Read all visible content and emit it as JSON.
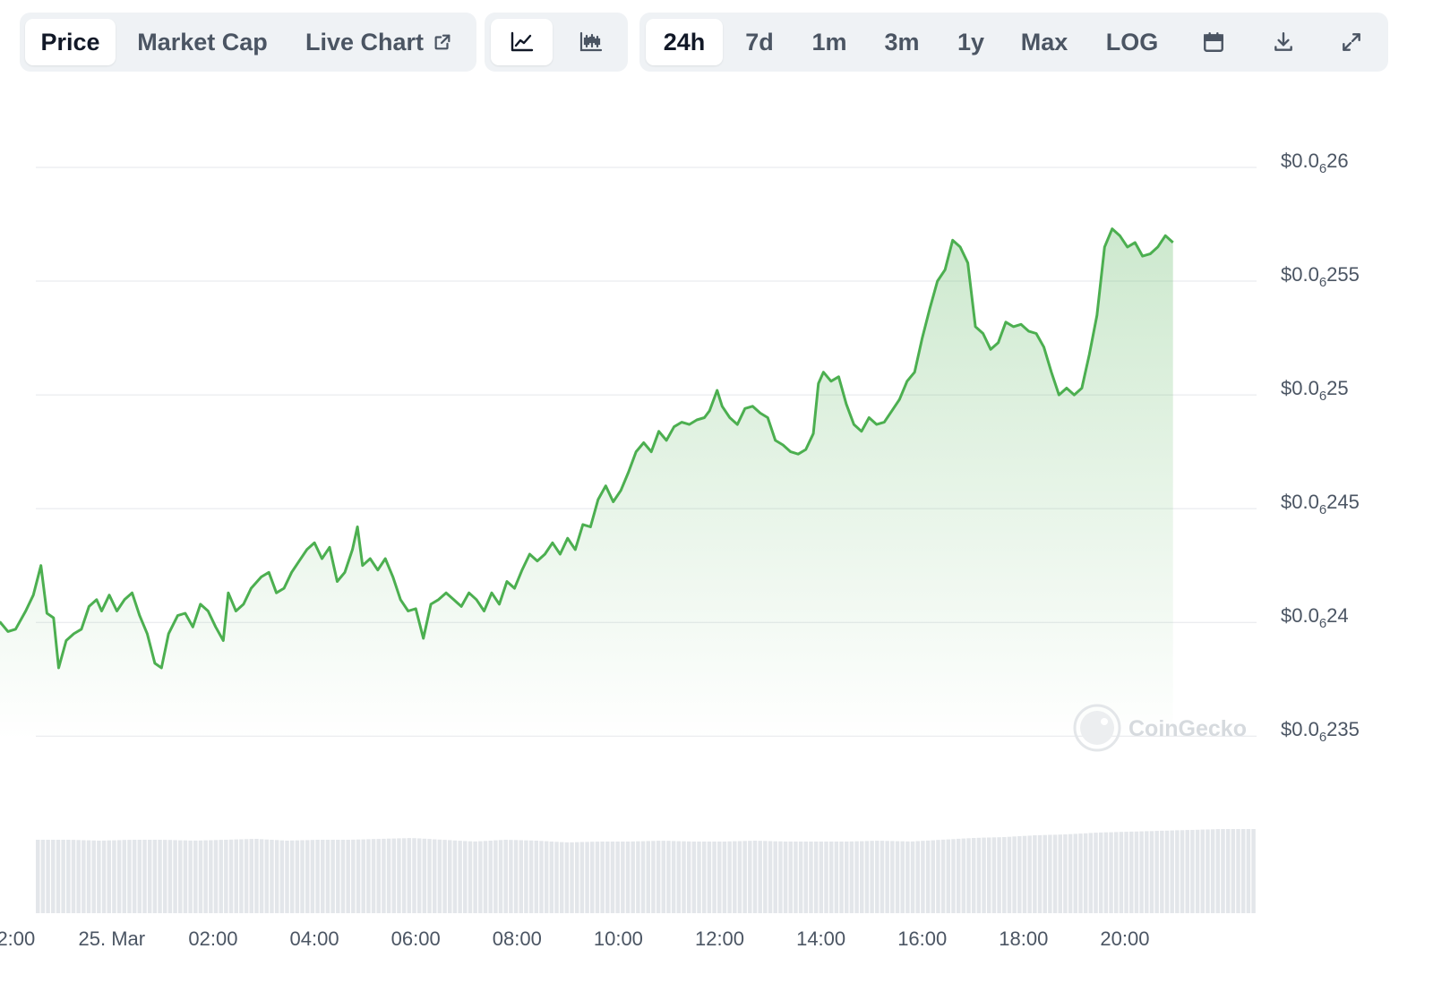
{
  "toolbar": {
    "view_tabs": [
      {
        "label": "Price",
        "active": true
      },
      {
        "label": "Market Cap",
        "active": false
      },
      {
        "label": "Live Chart",
        "active": false,
        "icon": "external-link-icon"
      }
    ],
    "chart_type_buttons": [
      {
        "icon": "line-chart-icon",
        "active": true
      },
      {
        "icon": "candlestick-chart-icon",
        "active": false
      }
    ],
    "ranges": [
      {
        "label": "24h",
        "active": true
      },
      {
        "label": "7d",
        "active": false
      },
      {
        "label": "1m",
        "active": false
      },
      {
        "label": "3m",
        "active": false
      },
      {
        "label": "1y",
        "active": false
      },
      {
        "label": "Max",
        "active": false
      },
      {
        "label": "LOG",
        "active": false
      }
    ],
    "tool_icons": [
      "calendar-icon",
      "download-icon",
      "fullscreen-icon"
    ]
  },
  "watermark": {
    "text": "CoinGecko",
    "icon": "coingecko-logo"
  },
  "colors": {
    "line": "#4caf50",
    "area": "#4caf50",
    "grid": "#e5e7eb",
    "volume": "#e3e6ea",
    "axis_text": "#4b5563"
  },
  "chart_data": {
    "type": "area",
    "title": "",
    "xlabel": "",
    "ylabel": "",
    "grid": true,
    "y_unit_note": "$0.0₆ = 0.000000 prefix (six zeros after decimal)",
    "ylim": [
      0.0623375,
      0.0626
    ],
    "xlim": [
      -1.5,
      22.6
    ],
    "y_ticks": [
      {
        "value": 0.0626,
        "label_prefix": "$0.0",
        "label_sub": "6",
        "label_suffix": "26"
      },
      {
        "value": 0.06255,
        "label_prefix": "$0.0",
        "label_sub": "6",
        "label_suffix": "255"
      },
      {
        "value": 0.0625,
        "label_prefix": "$0.0",
        "label_sub": "6",
        "label_suffix": "25"
      },
      {
        "value": 0.06245,
        "label_prefix": "$0.0",
        "label_sub": "6",
        "label_suffix": "245"
      },
      {
        "value": 0.0624,
        "label_prefix": "$0.0",
        "label_sub": "6",
        "label_suffix": "24"
      },
      {
        "value": 0.06235,
        "label_prefix": "$0.0",
        "label_sub": "6",
        "label_suffix": "235"
      }
    ],
    "x_ticks": [
      {
        "value": -2,
        "label": "22:00"
      },
      {
        "value": 0,
        "label": "25. Mar"
      },
      {
        "value": 2,
        "label": "02:00"
      },
      {
        "value": 4,
        "label": "04:00"
      },
      {
        "value": 6,
        "label": "06:00"
      },
      {
        "value": 8,
        "label": "08:00"
      },
      {
        "value": 10,
        "label": "10:00"
      },
      {
        "value": 12,
        "label": "12:00"
      },
      {
        "value": 14,
        "label": "14:00"
      },
      {
        "value": 16,
        "label": "16:00"
      },
      {
        "value": 18,
        "label": "18:00"
      },
      {
        "value": 20,
        "label": "20:00"
      }
    ],
    "series": [
      {
        "values": [
          [
            -2.55,
            0.0623975
          ],
          [
            -2.4,
            0.062396
          ],
          [
            -2.2,
            0.0624
          ],
          [
            -2.05,
            0.062396
          ],
          [
            -1.9,
            0.062397
          ],
          [
            -1.7,
            0.062405
          ],
          [
            -1.55,
            0.062412
          ],
          [
            -1.4,
            0.062425
          ],
          [
            -1.28,
            0.062404
          ],
          [
            -1.15,
            0.062402
          ],
          [
            -1.05,
            0.06238
          ],
          [
            -0.9,
            0.062392
          ],
          [
            -0.75,
            0.062395
          ],
          [
            -0.6,
            0.062397
          ],
          [
            -0.45,
            0.062407
          ],
          [
            -0.3,
            0.06241
          ],
          [
            -0.2,
            0.062405
          ],
          [
            -0.05,
            0.062412
          ],
          [
            0.1,
            0.062405
          ],
          [
            0.25,
            0.06241
          ],
          [
            0.4,
            0.062413
          ],
          [
            0.55,
            0.062403
          ],
          [
            0.7,
            0.062395
          ],
          [
            0.85,
            0.062382
          ],
          [
            0.98,
            0.06238
          ],
          [
            1.12,
            0.062395
          ],
          [
            1.3,
            0.062403
          ],
          [
            1.45,
            0.062404
          ],
          [
            1.6,
            0.062398
          ],
          [
            1.75,
            0.062408
          ],
          [
            1.9,
            0.062405
          ],
          [
            2.05,
            0.062398
          ],
          [
            2.2,
            0.062392
          ],
          [
            2.3,
            0.062413
          ],
          [
            2.45,
            0.062405
          ],
          [
            2.6,
            0.062408
          ],
          [
            2.75,
            0.062415
          ],
          [
            2.95,
            0.06242
          ],
          [
            3.1,
            0.062422
          ],
          [
            3.25,
            0.062413
          ],
          [
            3.4,
            0.062415
          ],
          [
            3.55,
            0.062422
          ],
          [
            3.7,
            0.062427
          ],
          [
            3.85,
            0.062432
          ],
          [
            4.0,
            0.062435
          ],
          [
            4.15,
            0.062428
          ],
          [
            4.3,
            0.062433
          ],
          [
            4.45,
            0.062418
          ],
          [
            4.6,
            0.062422
          ],
          [
            4.75,
            0.062432
          ],
          [
            4.85,
            0.062442
          ],
          [
            4.95,
            0.062425
          ],
          [
            5.1,
            0.062428
          ],
          [
            5.25,
            0.062423
          ],
          [
            5.4,
            0.062428
          ],
          [
            5.55,
            0.06242
          ],
          [
            5.7,
            0.06241
          ],
          [
            5.85,
            0.062405
          ],
          [
            6.0,
            0.062406
          ],
          [
            6.15,
            0.062393
          ],
          [
            6.3,
            0.062408
          ],
          [
            6.45,
            0.06241
          ],
          [
            6.6,
            0.062413
          ],
          [
            6.75,
            0.06241
          ],
          [
            6.9,
            0.062407
          ],
          [
            7.05,
            0.062413
          ],
          [
            7.2,
            0.06241
          ],
          [
            7.35,
            0.062405
          ],
          [
            7.5,
            0.062413
          ],
          [
            7.65,
            0.062408
          ],
          [
            7.8,
            0.062418
          ],
          [
            7.95,
            0.062415
          ],
          [
            8.1,
            0.062423
          ],
          [
            8.25,
            0.06243
          ],
          [
            8.4,
            0.062427
          ],
          [
            8.55,
            0.06243
          ],
          [
            8.7,
            0.062435
          ],
          [
            8.85,
            0.06243
          ],
          [
            9.0,
            0.062437
          ],
          [
            9.15,
            0.062432
          ],
          [
            9.3,
            0.062443
          ],
          [
            9.45,
            0.062442
          ],
          [
            9.6,
            0.062454
          ],
          [
            9.75,
            0.06246
          ],
          [
            9.9,
            0.062453
          ],
          [
            10.05,
            0.062458
          ],
          [
            10.2,
            0.062466
          ],
          [
            10.35,
            0.062475
          ],
          [
            10.5,
            0.062479
          ],
          [
            10.65,
            0.062475
          ],
          [
            10.8,
            0.062484
          ],
          [
            10.95,
            0.06248
          ],
          [
            11.1,
            0.062486
          ],
          [
            11.25,
            0.062488
          ],
          [
            11.4,
            0.062487
          ],
          [
            11.55,
            0.062489
          ],
          [
            11.7,
            0.06249
          ],
          [
            11.8,
            0.062493
          ],
          [
            11.95,
            0.062502
          ],
          [
            12.05,
            0.062495
          ],
          [
            12.2,
            0.06249
          ],
          [
            12.35,
            0.062487
          ],
          [
            12.5,
            0.062494
          ],
          [
            12.65,
            0.062495
          ],
          [
            12.8,
            0.062492
          ],
          [
            12.95,
            0.06249
          ],
          [
            13.1,
            0.06248
          ],
          [
            13.25,
            0.062478
          ],
          [
            13.4,
            0.062475
          ],
          [
            13.55,
            0.062474
          ],
          [
            13.7,
            0.062476
          ],
          [
            13.85,
            0.062483
          ],
          [
            13.95,
            0.062505
          ],
          [
            14.05,
            0.06251
          ],
          [
            14.2,
            0.062506
          ],
          [
            14.35,
            0.062508
          ],
          [
            14.5,
            0.062496
          ],
          [
            14.65,
            0.062487
          ],
          [
            14.8,
            0.062484
          ],
          [
            14.95,
            0.06249
          ],
          [
            15.1,
            0.062487
          ],
          [
            15.25,
            0.062488
          ],
          [
            15.4,
            0.062493
          ],
          [
            15.55,
            0.062498
          ],
          [
            15.7,
            0.062506
          ],
          [
            15.85,
            0.06251
          ],
          [
            16.0,
            0.062525
          ],
          [
            16.15,
            0.062538
          ],
          [
            16.3,
            0.06255
          ],
          [
            16.45,
            0.062555
          ],
          [
            16.6,
            0.062568
          ],
          [
            16.75,
            0.062565
          ],
          [
            16.9,
            0.062558
          ],
          [
            17.05,
            0.06253
          ],
          [
            17.2,
            0.062527
          ],
          [
            17.35,
            0.06252
          ],
          [
            17.5,
            0.062523
          ],
          [
            17.65,
            0.062532
          ],
          [
            17.8,
            0.06253
          ],
          [
            17.95,
            0.062531
          ],
          [
            18.1,
            0.062528
          ],
          [
            18.25,
            0.062527
          ],
          [
            18.4,
            0.062521
          ],
          [
            18.55,
            0.06251
          ],
          [
            18.7,
            0.0625
          ],
          [
            18.85,
            0.062503
          ],
          [
            19.0,
            0.0625
          ],
          [
            19.15,
            0.062503
          ],
          [
            19.3,
            0.062518
          ],
          [
            19.45,
            0.062535
          ],
          [
            19.6,
            0.062565
          ],
          [
            19.75,
            0.062573
          ],
          [
            19.9,
            0.06257
          ],
          [
            20.05,
            0.062565
          ],
          [
            20.2,
            0.062567
          ],
          [
            20.35,
            0.062561
          ],
          [
            20.5,
            0.062562
          ],
          [
            20.65,
            0.062565
          ],
          [
            20.8,
            0.06257
          ],
          [
            20.95,
            0.062567
          ]
        ]
      }
    ],
    "volume": {
      "type": "bar",
      "note": "relative trading volume bars (no scale shown)",
      "relative_values": [
        0.82,
        0.82,
        0.81,
        0.82,
        0.82,
        0.81,
        0.82,
        0.83,
        0.81,
        0.82,
        0.82,
        0.83,
        0.84,
        0.82,
        0.8,
        0.82,
        0.81,
        0.79,
        0.8,
        0.8,
        0.81,
        0.8,
        0.8,
        0.81,
        0.8,
        0.8,
        0.8,
        0.81,
        0.8,
        0.82,
        0.84,
        0.85,
        0.87,
        0.88,
        0.9,
        0.91,
        0.92,
        0.93,
        0.94,
        0.94
      ]
    }
  }
}
